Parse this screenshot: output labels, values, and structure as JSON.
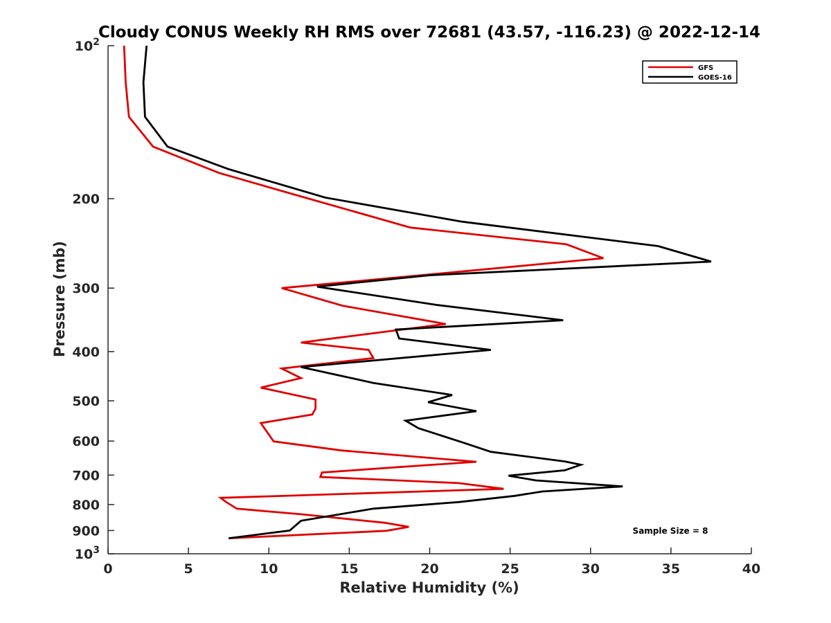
{
  "chart_data": {
    "type": "line",
    "title": "Cloudy CONUS Weekly RH RMS over 72681 (43.57, -116.23) @ 2022-12-14",
    "xlabel": "Relative Humidity (%)",
    "ylabel": "Pressure (mb)",
    "xlim": [
      0,
      40
    ],
    "ylim": [
      100,
      1000
    ],
    "y_scale": "log",
    "y_reversed": true,
    "x_ticks": [
      "0",
      "5",
      "10",
      "15",
      "20",
      "25",
      "30",
      "35",
      "40"
    ],
    "y_ticks": [
      {
        "value": 100,
        "base": "10",
        "exp": "2"
      },
      {
        "value": 200,
        "label": "200"
      },
      {
        "value": 300,
        "label": "300"
      },
      {
        "value": 400,
        "label": "400"
      },
      {
        "value": 500,
        "label": "500"
      },
      {
        "value": 600,
        "label": "600"
      },
      {
        "value": 700,
        "label": "700"
      },
      {
        "value": 800,
        "label": "800"
      },
      {
        "value": 900,
        "label": "900"
      },
      {
        "value": 1000,
        "base": "10",
        "exp": "3"
      }
    ],
    "grid": false,
    "legend_position": "top-right",
    "annotation": "Sample Size = 8",
    "series": [
      {
        "name": "GFS",
        "color": "#e00000",
        "x": [
          1.0,
          1.1,
          1.3,
          2.8,
          6.9,
          11.5,
          18.8,
          28.5,
          30.8,
          19.0,
          10.8,
          14.6,
          21.0,
          14.5,
          12.0,
          16.2,
          16.5,
          10.8,
          12.0,
          9.5,
          12.9,
          12.9,
          12.7,
          9.5,
          10.3,
          14.5,
          22.9,
          17.5,
          13.3,
          13.2,
          21.8,
          24.6,
          7.0,
          7.3,
          8.0,
          12.0,
          17.2,
          18.7,
          17.3,
          7.5
        ],
        "y": [
          100,
          118,
          138,
          158,
          178,
          196,
          228,
          246,
          262,
          284,
          300,
          325,
          353,
          375,
          384,
          397,
          412,
          432,
          451,
          471,
          497,
          518,
          532,
          553,
          601,
          626,
          659,
          677,
          692,
          706,
          726,
          745,
          776,
          789,
          815,
          836,
          869,
          885,
          901,
          932
        ]
      },
      {
        "name": "GOES-16",
        "color": "#000000",
        "x": [
          2.4,
          2.2,
          2.3,
          3.7,
          7.5,
          13.5,
          22.0,
          34.2,
          37.5,
          20.0,
          13.0,
          20.5,
          28.3,
          17.9,
          18.1,
          23.8,
          12.0,
          16.5,
          21.4,
          19.9,
          22.9,
          18.5,
          19.3,
          22.2,
          23.8,
          28.4,
          29.4,
          28.4,
          24.9,
          26.6,
          32.0,
          27.0,
          25.3,
          21.8,
          16.5,
          12.0,
          11.3,
          7.5
        ],
        "y": [
          100,
          118,
          138,
          158,
          175,
          199,
          222,
          248,
          266,
          283,
          298,
          324,
          347,
          362,
          377,
          397,
          429,
          461,
          487,
          503,
          524,
          547,
          566,
          606,
          630,
          658,
          668,
          685,
          702,
          717,
          737,
          754,
          769,
          791,
          815,
          861,
          900,
          932
        ]
      }
    ]
  }
}
